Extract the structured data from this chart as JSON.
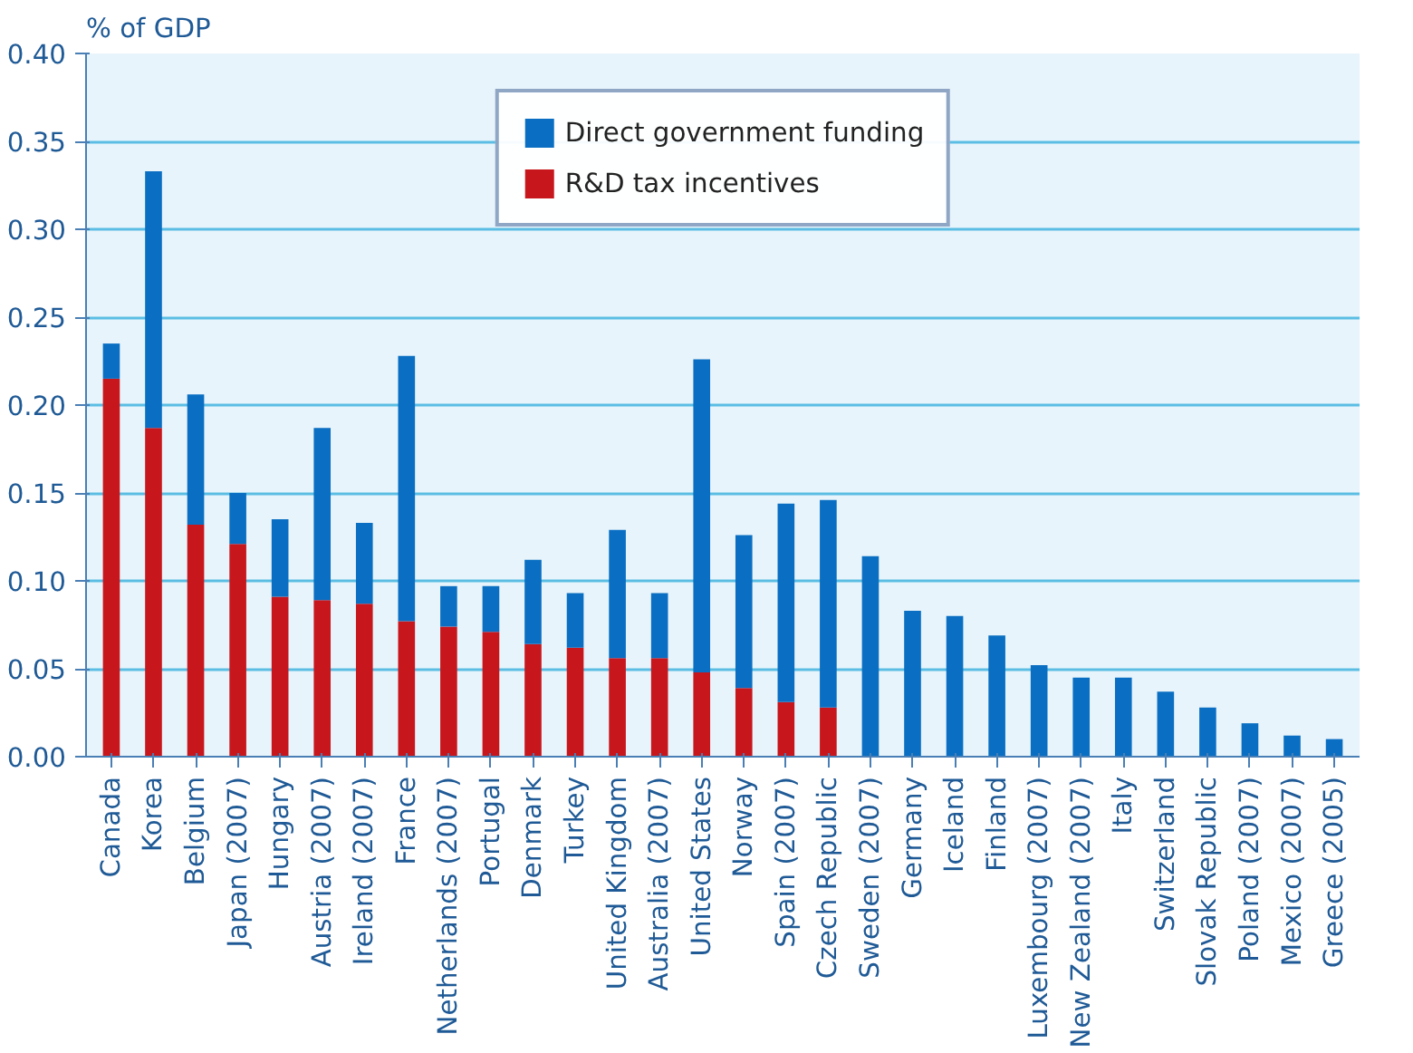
{
  "chart_data": {
    "type": "bar",
    "stacked": true,
    "ylabel": "% of GDP",
    "categories": [
      "Canada",
      "Korea",
      "Belgium",
      "Japan (2007)",
      "Hungary",
      "Austria (2007)",
      "Ireland (2007)",
      "France",
      "Netherlands (2007)",
      "Portugal",
      "Denmark",
      "Turkey",
      "United Kingdom",
      "Australia (2007)",
      "United States",
      "Norway",
      "Spain (2007)",
      "Czech Republic",
      "Sweden (2007)",
      "Germany",
      "Iceland",
      "Finland",
      "Luxembourg (2007)",
      "New Zealand (2007)",
      "Italy",
      "Switzerland",
      "Slovak Republic",
      "Poland (2007)",
      "Mexico (2007)",
      "Greece (2005)"
    ],
    "series": [
      {
        "name": "R&D tax incentives",
        "color": "#c8161d",
        "values": [
          0.215,
          0.187,
          0.132,
          0.121,
          0.091,
          0.089,
          0.087,
          0.077,
          0.074,
          0.071,
          0.064,
          0.062,
          0.056,
          0.056,
          0.048,
          0.039,
          0.031,
          0.028,
          null,
          null,
          null,
          null,
          null,
          null,
          null,
          null,
          null,
          null,
          null,
          null
        ]
      },
      {
        "name": "Direct government funding",
        "color": "#0a6fc2",
        "values": [
          0.02,
          0.146,
          0.074,
          0.029,
          0.044,
          0.098,
          0.046,
          0.151,
          0.023,
          0.026,
          0.048,
          0.031,
          0.073,
          0.037,
          0.178,
          0.087,
          0.113,
          0.118,
          0.114,
          0.083,
          0.08,
          0.069,
          0.052,
          0.045,
          0.045,
          0.037,
          0.028,
          0.019,
          0.012,
          0.01
        ]
      }
    ],
    "ylim": [
      0,
      0.4
    ],
    "yticks": [
      {
        "value": 0,
        "label": "0.00"
      },
      0.05,
      {
        "value": 0.1,
        "label": "0.10"
      },
      0.15,
      {
        "value": 0.2,
        "label": "0.20"
      },
      0.25,
      {
        "value": 0.3,
        "label": "0.30"
      },
      0.35,
      {
        "value": 0.4,
        "label": "0.40"
      }
    ],
    "grid": "y",
    "legend": "top"
  }
}
